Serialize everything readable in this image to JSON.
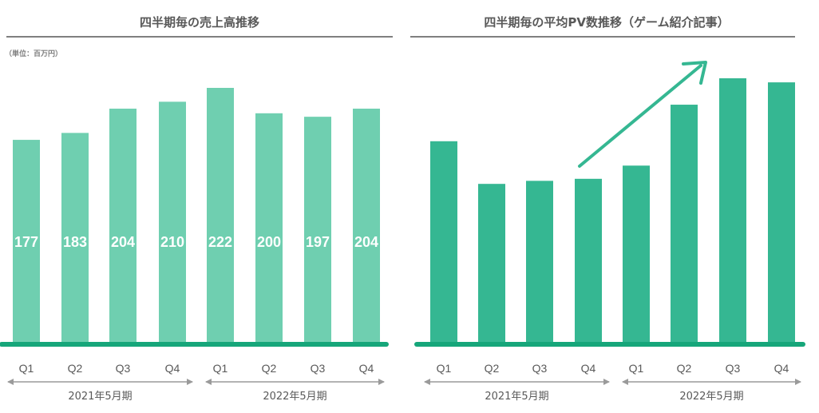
{
  "chart_data": [
    {
      "type": "bar",
      "title": "四半期毎の売上高推移",
      "unit_label": "（単位：百万円）",
      "categories": [
        "Q1",
        "Q2",
        "Q3",
        "Q4",
        "Q1",
        "Q2",
        "Q3",
        "Q4"
      ],
      "values": [
        177,
        183,
        204,
        210,
        222,
        200,
        197,
        204
      ],
      "data_labels": [
        "177",
        "183",
        "204",
        "210",
        "222",
        "200",
        "197",
        "204"
      ],
      "ylim": [
        0,
        230
      ],
      "periods": [
        {
          "label": "2021年5月期",
          "categories": [
            "Q1",
            "Q2",
            "Q3",
            "Q4"
          ]
        },
        {
          "label": "2022年5月期",
          "categories": [
            "Q1",
            "Q2",
            "Q3",
            "Q4"
          ]
        }
      ],
      "bar_color": "#6fcfb0",
      "baseline_color": "#16a67a"
    },
    {
      "type": "bar",
      "title": "四半期毎の平均PV数推移（ゲーム紹介記事）",
      "categories": [
        "Q1",
        "Q2",
        "Q3",
        "Q4",
        "Q1",
        "Q2",
        "Q3",
        "Q4"
      ],
      "values": [
        100,
        79,
        80.5,
        81.5,
        88,
        118,
        131,
        129
      ],
      "ylim": [
        0,
        150
      ],
      "periods": [
        {
          "label": "2021年5月期",
          "categories": [
            "Q1",
            "Q2",
            "Q3",
            "Q4"
          ]
        },
        {
          "label": "2022年5月期",
          "categories": [
            "Q1",
            "Q2",
            "Q3",
            "Q4"
          ]
        }
      ],
      "annotation": "upward trend arrow",
      "bar_color": "#35b792",
      "baseline_color": "#16a67a"
    }
  ],
  "colors": {
    "header_rule": "#7f7f7f",
    "period_arrow": "#9a9a9a",
    "trend_arrow": "#35b792"
  }
}
